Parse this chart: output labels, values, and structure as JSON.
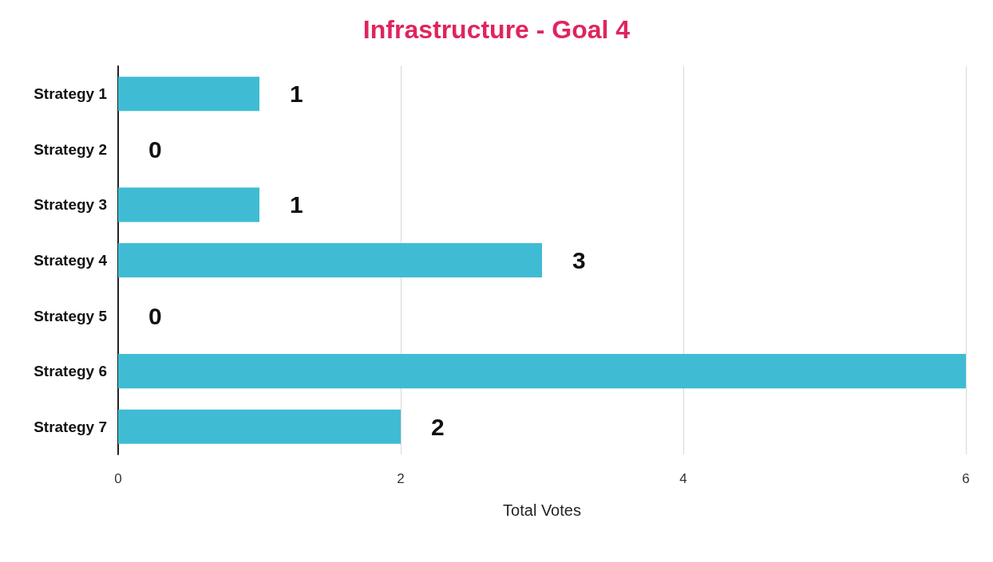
{
  "chart_data": {
    "type": "bar",
    "title": "Infrastructure - Goal 4",
    "xlabel": "Total Votes",
    "orientation": "horizontal",
    "categories": [
      "Strategy 1",
      "Strategy 2",
      "Strategy 3",
      "Strategy 4",
      "Strategy 5",
      "Strategy 6",
      "Strategy 7"
    ],
    "values": [
      1,
      0,
      1,
      3,
      0,
      6,
      2
    ],
    "value_labels": [
      "1",
      "0",
      "1",
      "3",
      "0",
      null,
      "2"
    ],
    "color": "#3fbcd4",
    "xlim": [
      0,
      6
    ],
    "xticks": [
      0,
      2,
      4,
      6
    ],
    "grid": "x"
  }
}
